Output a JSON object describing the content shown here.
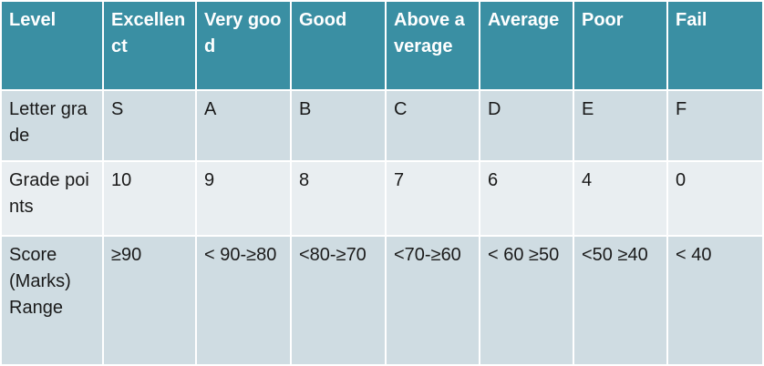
{
  "table": {
    "header": [
      "Level",
      "Excellenct",
      "Very good",
      "Good",
      "Above average",
      "Average",
      "Poor",
      "Fail"
    ],
    "rows": [
      [
        "Letter grade",
        "S",
        "A",
        "B",
        "C",
        "D",
        "E",
        "F"
      ],
      [
        "Grade points",
        10,
        9,
        8,
        7,
        6,
        4,
        0
      ],
      [
        "Score (Marks) Range",
        "≥90",
        "< 90-≥80",
        "<80-≥70",
        "<70-≥60",
        "< 60 ≥50",
        "<50 ≥40",
        "< 40"
      ]
    ]
  }
}
